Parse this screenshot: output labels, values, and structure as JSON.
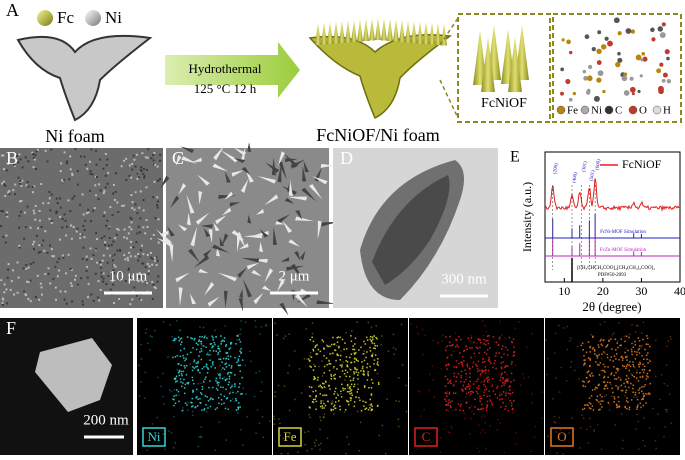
{
  "panel_labels": [
    "A",
    "B",
    "C",
    "D",
    "E",
    "F"
  ],
  "panel_a": {
    "legend": [
      "Fc",
      "Ni"
    ],
    "substrate": "Ni foam",
    "arrow_top": "Hydrothermal",
    "arrow_bottom": "125 °C 12 h",
    "product": "FcNiOF/Ni foam",
    "inset": "FcNiOF",
    "atoms": [
      "Fe",
      "Ni",
      "C",
      "O",
      "H"
    ]
  },
  "scale_bars": {
    "b": "10 μm",
    "c": "2 μm",
    "d": "300 nm",
    "f": "200 nm"
  },
  "panel_e": {
    "legend": "FcNiOF",
    "ylabel": "Intensity (a.u.)",
    "xlabel": "2θ (degree)",
    "xlim": [
      5,
      40
    ],
    "xticks": [
      10,
      20,
      30,
      40
    ],
    "peaks": [
      "(200)",
      "(400)",
      "(301)",
      "(501)",
      "(600)"
    ],
    "sim1": "FcNi-MOF Simulation",
    "sim2": "FcZn-MOF Simulation",
    "ref1": "[CH₃CHCH₂COO]₂[CH₃(CH₂)₂COO]₂",
    "ref2": "PDF#50-2093"
  },
  "panel_f": {
    "elements": [
      "Ni",
      "Fe",
      "C",
      "O"
    ]
  }
}
